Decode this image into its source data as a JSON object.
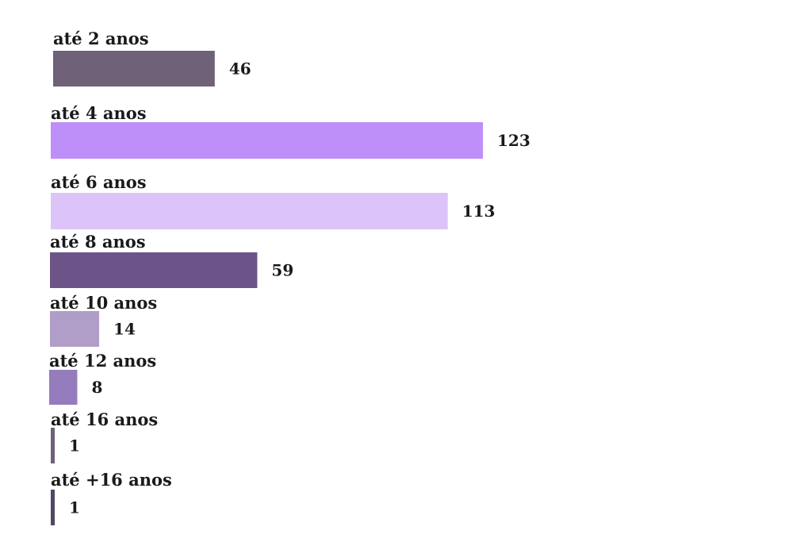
{
  "chart_data": {
    "type": "bar",
    "orientation": "horizontal",
    "categories": [
      "até 2 anos",
      "até 4 anos",
      "até 6 anos",
      "até 8 anos",
      "até 10 anos",
      "até 12 anos",
      "até 16 anos",
      "até +16 anos"
    ],
    "values": [
      46,
      123,
      113,
      59,
      14,
      8,
      1,
      1
    ],
    "colors": [
      "#6e6178",
      "#be8ff8",
      "#dcc4f8",
      "#6c5489",
      "#b19ec8",
      "#957cbd",
      "#6e6178",
      "#524664"
    ],
    "title": "",
    "xlabel": "",
    "ylabel": "",
    "xlim": [
      0,
      123
    ],
    "grid": false,
    "legend": "none",
    "data_labels": true
  }
}
